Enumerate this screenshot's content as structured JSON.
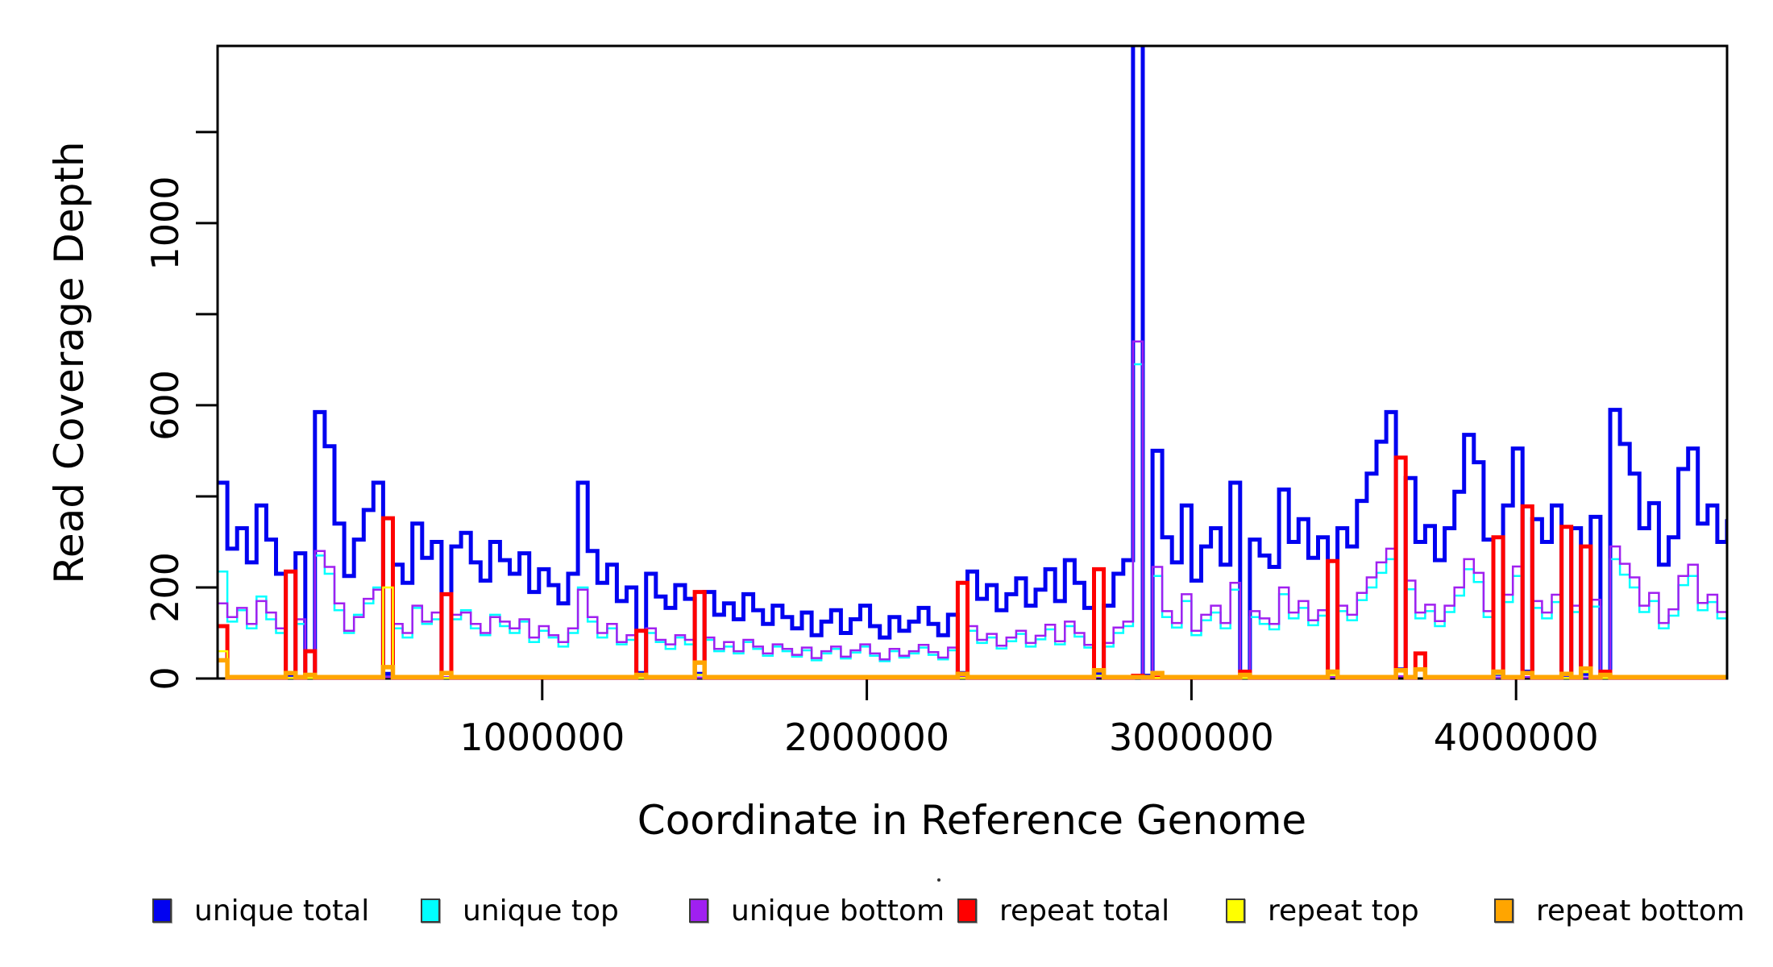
{
  "y_axis": {
    "title": "Read Coverage Depth",
    "tick_labels": [
      {
        "value": 0,
        "label": "0"
      },
      {
        "value": 200,
        "label": "200"
      },
      {
        "value": 600,
        "label": "600"
      },
      {
        "value": 1000,
        "label": "1000"
      }
    ],
    "minor_tick_values": [
      0,
      200,
      400,
      600,
      800,
      1000,
      1200
    ]
  },
  "x_axis": {
    "title": "Coordinate in Reference Genome",
    "tick_labels": [
      {
        "value": 1000000,
        "label": "1000000"
      },
      {
        "value": 2000000,
        "label": "2000000"
      },
      {
        "value": 3000000,
        "label": "3000000"
      },
      {
        "value": 4000000,
        "label": "4000000"
      }
    ]
  },
  "legend": {
    "title_dot": ".",
    "items": [
      {
        "label": "unique total",
        "color": "#0202F0"
      },
      {
        "label": "unique top",
        "color": "#00FFFF"
      },
      {
        "label": "unique bottom",
        "color": "#A020F0"
      },
      {
        "label": "repeat total",
        "color": "#FF0000"
      },
      {
        "label": "repeat top",
        "color": "#FFFF00"
      },
      {
        "label": "repeat bottom",
        "color": "#FFA500"
      }
    ]
  },
  "chart_data": {
    "type": "line",
    "subtype": "step-post",
    "bin_size": 30000,
    "x_start": 0,
    "xlim": [
      0,
      4650000
    ],
    "ylim": [
      0,
      1389
    ],
    "grid": false,
    "legend_position": "bottom",
    "series": [
      {
        "name": "unique total",
        "color": "#0202F0",
        "line_width": 5,
        "values": [
          430,
          285,
          330,
          255,
          380,
          305,
          230,
          8,
          275,
          5,
          585,
          510,
          340,
          225,
          305,
          370,
          430,
          10,
          250,
          210,
          340,
          265,
          300,
          12,
          290,
          320,
          255,
          215,
          300,
          260,
          230,
          275,
          190,
          240,
          205,
          165,
          230,
          430,
          280,
          210,
          250,
          170,
          200,
          12,
          230,
          180,
          155,
          205,
          175,
          10,
          190,
          140,
          165,
          130,
          185,
          150,
          120,
          160,
          135,
          110,
          145,
          95,
          125,
          150,
          100,
          130,
          160,
          115,
          90,
          135,
          105,
          125,
          155,
          120,
          95,
          140,
          12,
          235,
          175,
          205,
          150,
          185,
          220,
          160,
          195,
          240,
          170,
          260,
          210,
          155,
          12,
          160,
          230,
          260,
          1450,
          6,
          500,
          310,
          255,
          380,
          215,
          290,
          330,
          250,
          430,
          10,
          305,
          270,
          245,
          415,
          300,
          350,
          265,
          310,
          14,
          330,
          290,
          390,
          450,
          520,
          585,
          20,
          440,
          300,
          335,
          260,
          330,
          410,
          535,
          475,
          305,
          10,
          380,
          505,
          15,
          350,
          300,
          380,
          8,
          330,
          10,
          355,
          8,
          590,
          515,
          450,
          330,
          385,
          250,
          310,
          460,
          505,
          340,
          380,
          300,
          350
        ]
      },
      {
        "name": "unique top",
        "color": "#00FFFF",
        "line_width": 2.5,
        "values": [
          235,
          125,
          150,
          110,
          180,
          130,
          100,
          2,
          120,
          2,
          270,
          230,
          150,
          100,
          140,
          165,
          200,
          3,
          110,
          90,
          155,
          120,
          130,
          3,
          130,
          150,
          110,
          95,
          140,
          115,
          100,
          125,
          80,
          105,
          90,
          70,
          100,
          200,
          125,
          90,
          110,
          75,
          85,
          3,
          100,
          80,
          65,
          90,
          75,
          2,
          85,
          60,
          70,
          55,
          80,
          65,
          50,
          70,
          60,
          48,
          62,
          40,
          55,
          65,
          44,
          57,
          70,
          50,
          38,
          60,
          46,
          55,
          68,
          52,
          42,
          62,
          3,
          105,
          78,
          90,
          66,
          82,
          98,
          70,
          86,
          108,
          75,
          115,
          92,
          68,
          3,
          70,
          100,
          115,
          690,
          2,
          225,
          135,
          112,
          170,
          95,
          128,
          145,
          110,
          195,
          2,
          135,
          120,
          108,
          185,
          132,
          155,
          117,
          138,
          3,
          148,
          128,
          172,
          200,
          232,
          262,
          5,
          196,
          132,
          148,
          115,
          146,
          182,
          240,
          212,
          135,
          2,
          168,
          225,
          3,
          155,
          132,
          168,
          2,
          146,
          2,
          158,
          2,
          262,
          228,
          200,
          146,
          170,
          110,
          138,
          205,
          225,
          150,
          168,
          132,
          155
        ]
      },
      {
        "name": "unique bottom",
        "color": "#A020F0",
        "line_width": 2.5,
        "values": [
          165,
          135,
          155,
          120,
          170,
          145,
          110,
          2,
          130,
          2,
          280,
          245,
          165,
          105,
          135,
          175,
          195,
          3,
          120,
          100,
          160,
          125,
          145,
          3,
          140,
          145,
          120,
          100,
          135,
          125,
          110,
          130,
          90,
          115,
          95,
          80,
          110,
          195,
          135,
          100,
          120,
          80,
          95,
          3,
          110,
          85,
          75,
          95,
          85,
          2,
          90,
          65,
          80,
          60,
          85,
          70,
          55,
          75,
          65,
          52,
          68,
          45,
          60,
          70,
          48,
          62,
          75,
          55,
          42,
          65,
          50,
          60,
          74,
          58,
          46,
          68,
          3,
          115,
          85,
          98,
          72,
          90,
          105,
          78,
          94,
          118,
          82,
          125,
          100,
          74,
          3,
          78,
          112,
          125,
          740,
          2,
          245,
          148,
          122,
          185,
          105,
          140,
          160,
          122,
          210,
          2,
          148,
          132,
          120,
          200,
          145,
          170,
          128,
          150,
          3,
          160,
          140,
          188,
          222,
          255,
          285,
          5,
          215,
          145,
          162,
          126,
          160,
          200,
          262,
          232,
          148,
          2,
          184,
          246,
          3,
          170,
          145,
          184,
          2,
          160,
          2,
          173,
          2,
          290,
          252,
          222,
          160,
          188,
          122,
          152,
          225,
          250,
          166,
          184,
          146,
          170
        ]
      },
      {
        "name": "repeat total",
        "color": "#FF0000",
        "line_width": 5,
        "values": [
          115,
          2,
          2,
          2,
          2,
          2,
          2,
          235,
          2,
          60,
          2,
          2,
          2,
          2,
          2,
          2,
          2,
          352,
          2,
          2,
          2,
          2,
          2,
          185,
          2,
          2,
          2,
          2,
          2,
          2,
          2,
          2,
          2,
          2,
          2,
          2,
          2,
          2,
          2,
          2,
          2,
          2,
          2,
          105,
          2,
          2,
          2,
          2,
          2,
          190,
          2,
          2,
          2,
          2,
          2,
          2,
          2,
          2,
          2,
          2,
          2,
          2,
          2,
          2,
          2,
          2,
          2,
          2,
          2,
          2,
          2,
          2,
          2,
          2,
          2,
          2,
          210,
          2,
          2,
          2,
          2,
          2,
          2,
          2,
          2,
          2,
          2,
          2,
          2,
          2,
          240,
          2,
          2,
          2,
          6,
          2,
          2,
          2,
          2,
          2,
          2,
          2,
          2,
          2,
          2,
          15,
          2,
          2,
          2,
          2,
          2,
          2,
          2,
          2,
          258,
          2,
          2,
          2,
          2,
          2,
          2,
          485,
          2,
          55,
          2,
          2,
          2,
          2,
          2,
          2,
          2,
          310,
          2,
          2,
          378,
          2,
          2,
          2,
          333,
          2,
          290,
          2,
          15,
          2,
          2,
          2,
          2,
          2,
          2,
          2,
          2,
          2,
          2,
          2,
          2,
          2
        ]
      },
      {
        "name": "repeat top",
        "color": "#FFFF00",
        "line_width": 2.5,
        "values": [
          60,
          1,
          1,
          1,
          1,
          1,
          1,
          1,
          1,
          1,
          1,
          1,
          1,
          1,
          1,
          1,
          1,
          200,
          1,
          1,
          1,
          1,
          1,
          1,
          1,
          1,
          1,
          1,
          1,
          1,
          1,
          1,
          1,
          1,
          1,
          1,
          1,
          1,
          1,
          1,
          1,
          1,
          1,
          1,
          1,
          1,
          1,
          1,
          1,
          8,
          1,
          1,
          1,
          1,
          1,
          1,
          1,
          1,
          1,
          1,
          1,
          1,
          1,
          1,
          1,
          1,
          1,
          1,
          1,
          1,
          1,
          1,
          1,
          1,
          1,
          1,
          1,
          1,
          1,
          1,
          1,
          1,
          1,
          1,
          1,
          1,
          1,
          1,
          1,
          1,
          6,
          1,
          1,
          1,
          1,
          1,
          1,
          1,
          1,
          1,
          1,
          1,
          1,
          1,
          1,
          1,
          1,
          1,
          1,
          1,
          1,
          1,
          1,
          1,
          8,
          1,
          1,
          1,
          1,
          1,
          1,
          15,
          1,
          18,
          1,
          1,
          1,
          1,
          1,
          1,
          1,
          10,
          1,
          1,
          10,
          1,
          1,
          1,
          1,
          1,
          14,
          1,
          1,
          1,
          1,
          1,
          1,
          1,
          1,
          1,
          1,
          1,
          1,
          1,
          1,
          1
        ]
      },
      {
        "name": "repeat bottom",
        "color": "#FFA500",
        "line_width": 5.5,
        "values": [
          40,
          3,
          3,
          3,
          3,
          3,
          3,
          12,
          3,
          8,
          3,
          3,
          3,
          3,
          3,
          3,
          3,
          25,
          3,
          3,
          3,
          3,
          3,
          12,
          3,
          3,
          3,
          3,
          3,
          3,
          3,
          3,
          3,
          3,
          3,
          3,
          3,
          3,
          3,
          3,
          3,
          3,
          3,
          8,
          3,
          3,
          3,
          3,
          3,
          35,
          3,
          3,
          3,
          3,
          3,
          3,
          3,
          3,
          3,
          3,
          3,
          3,
          3,
          3,
          3,
          3,
          3,
          3,
          3,
          3,
          3,
          3,
          3,
          3,
          3,
          3,
          10,
          3,
          3,
          3,
          3,
          3,
          3,
          3,
          3,
          3,
          3,
          3,
          3,
          3,
          18,
          3,
          3,
          3,
          3,
          3,
          12,
          3,
          3,
          3,
          3,
          3,
          3,
          3,
          3,
          8,
          3,
          3,
          3,
          3,
          3,
          3,
          3,
          3,
          15,
          3,
          3,
          3,
          3,
          3,
          3,
          18,
          3,
          20,
          3,
          3,
          3,
          3,
          3,
          3,
          3,
          15,
          3,
          3,
          12,
          3,
          3,
          3,
          10,
          3,
          22,
          3,
          8,
          3,
          3,
          3,
          3,
          3,
          3,
          3,
          3,
          3,
          3,
          3,
          3,
          3
        ]
      }
    ]
  }
}
